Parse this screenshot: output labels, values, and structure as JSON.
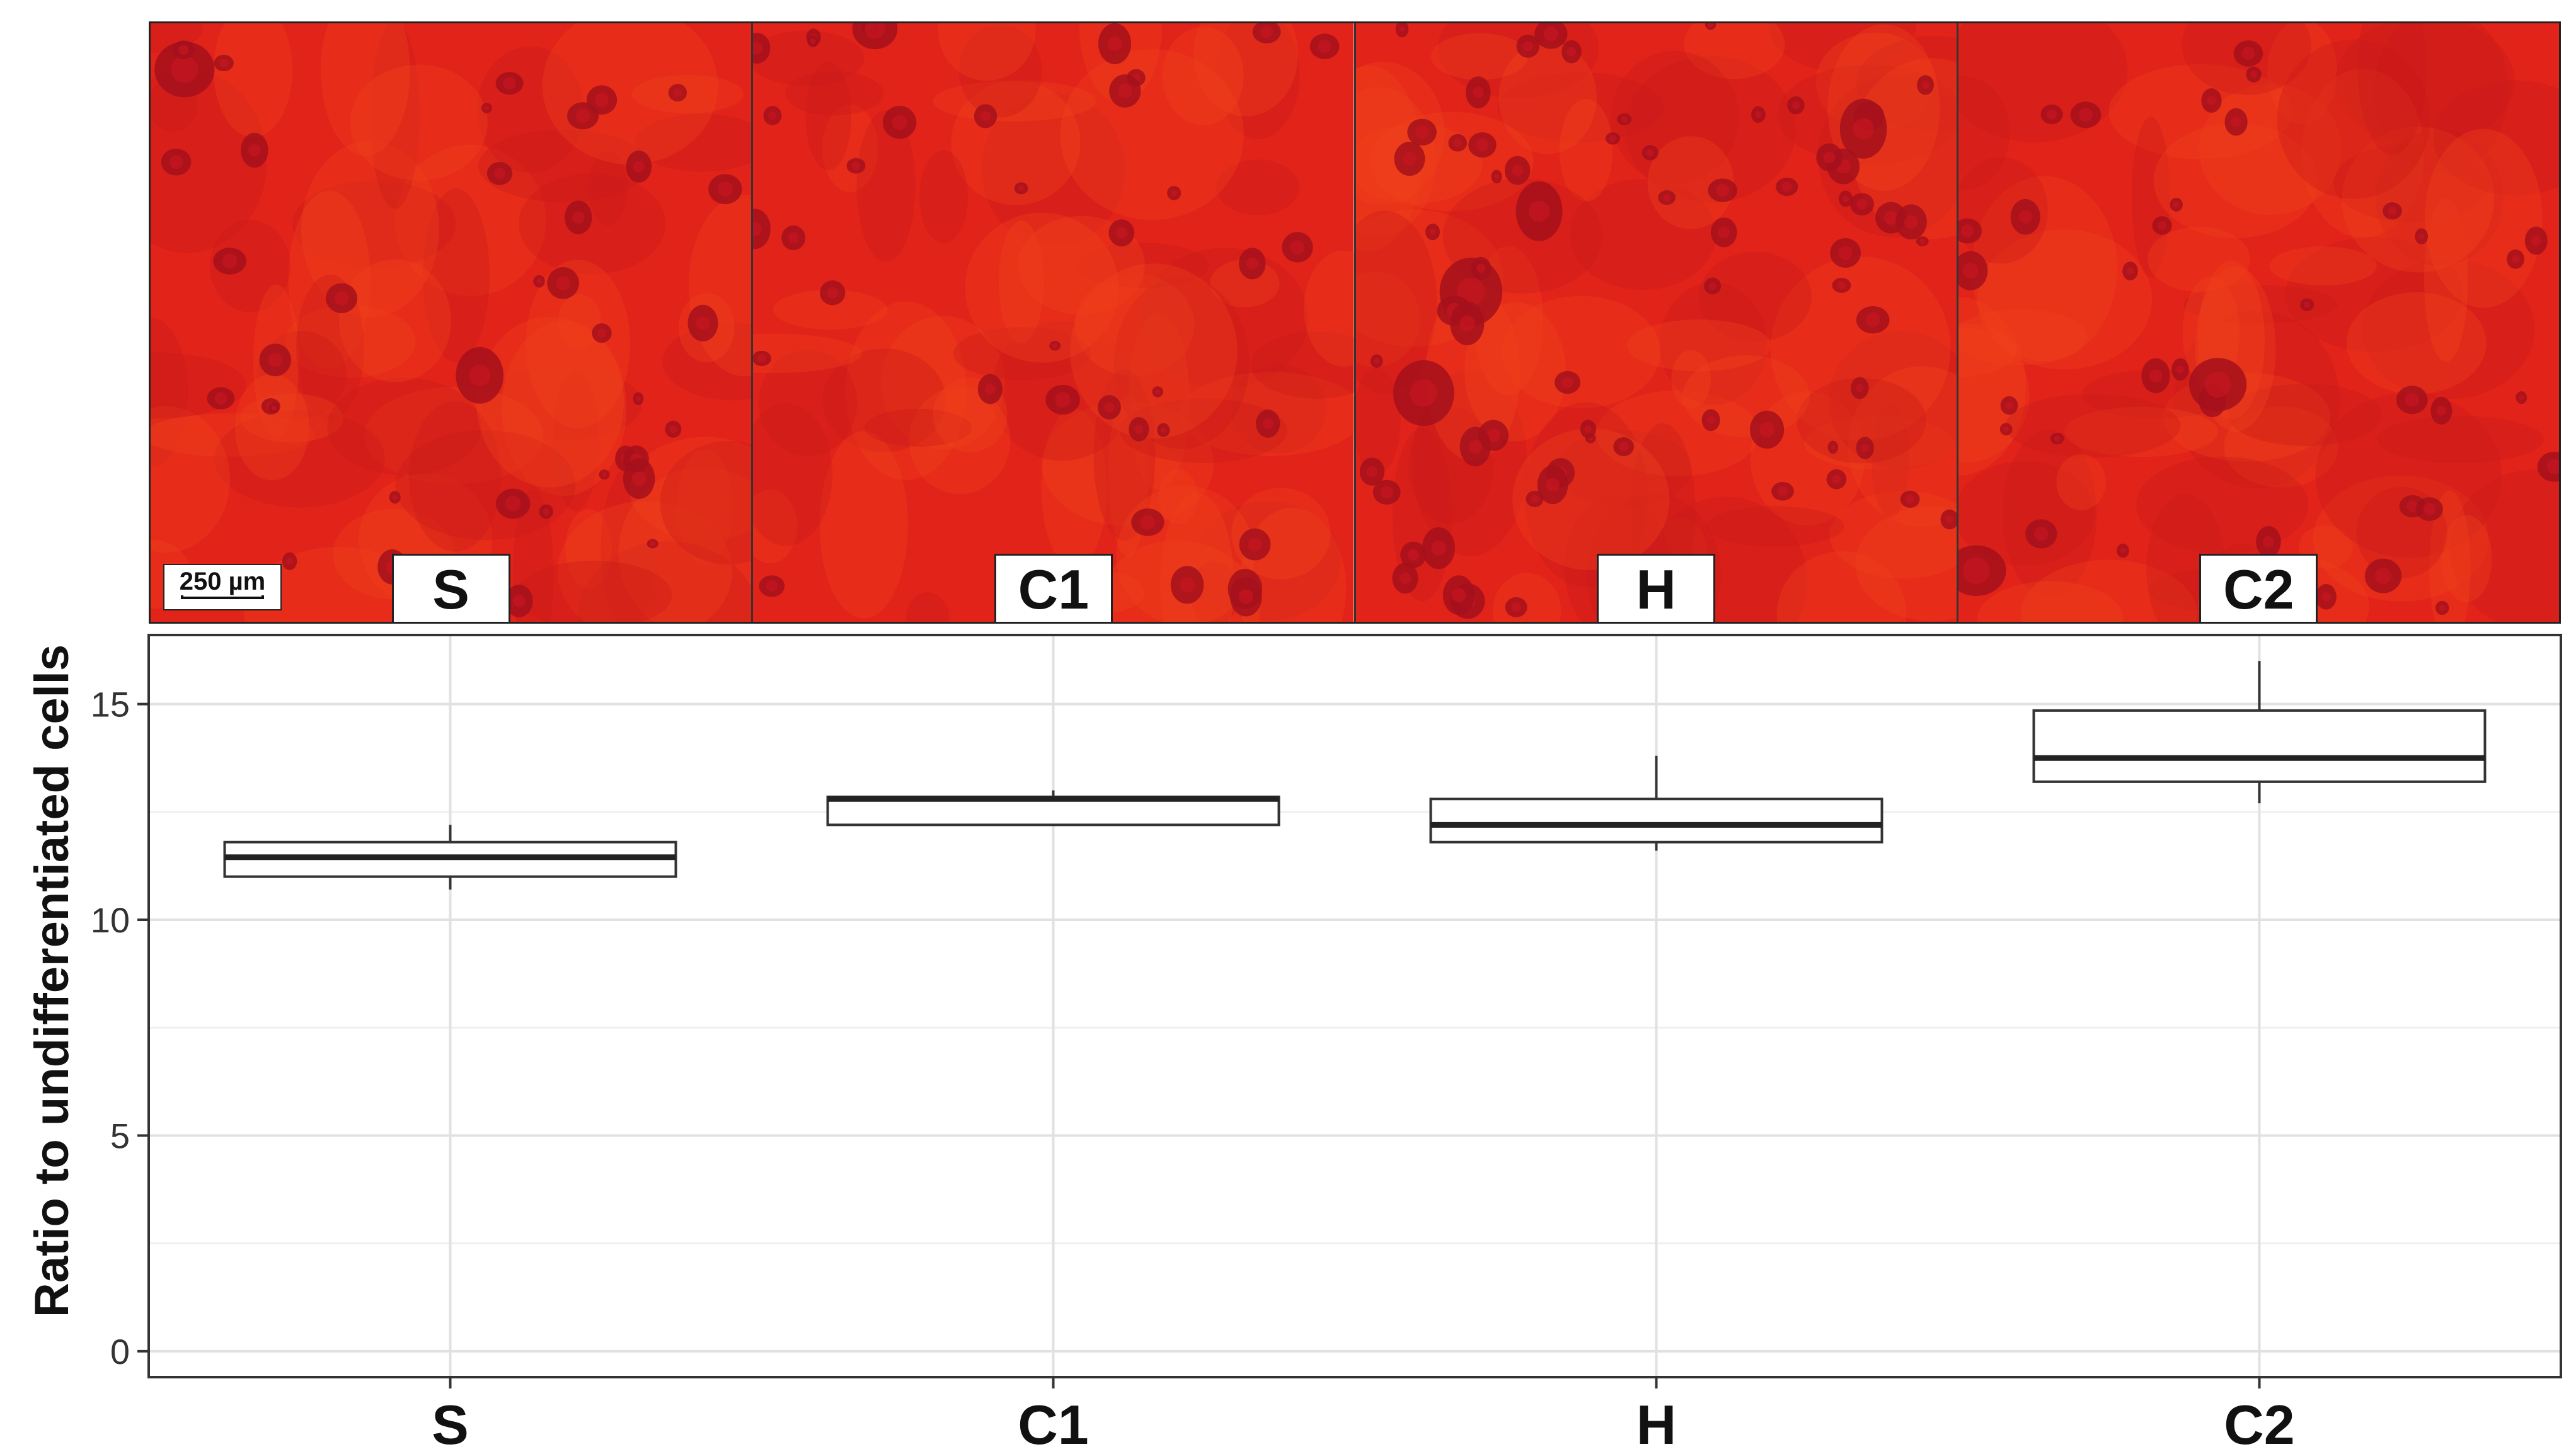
{
  "micrographs": {
    "panels": [
      {
        "label": "S"
      },
      {
        "label": "C1"
      },
      {
        "label": "H"
      },
      {
        "label": "C2"
      }
    ],
    "scale_bar": "250 µm",
    "colors": {
      "stain": "#e2231a",
      "dark_stain": "#a5101c",
      "light_stain": "#f0421c"
    }
  },
  "chart_data": {
    "type": "box",
    "title": "",
    "xlabel": "",
    "ylabel": "Ratio to undifferentiated  cells",
    "ylim": [
      -0.6,
      16.6
    ],
    "yticks": [
      0,
      5,
      10,
      15
    ],
    "grid": true,
    "categories": [
      "S",
      "C1",
      "H",
      "C2"
    ],
    "boxes": [
      {
        "category": "S",
        "whisker_low": 10.7,
        "q1": 11.0,
        "median": 11.45,
        "q3": 11.8,
        "whisker_high": 12.2
      },
      {
        "category": "C1",
        "whisker_low": 12.2,
        "q1": 12.2,
        "median": 12.8,
        "q3": 12.85,
        "whisker_high": 13.0
      },
      {
        "category": "H",
        "whisker_low": 11.6,
        "q1": 11.8,
        "median": 12.2,
        "q3": 12.8,
        "whisker_high": 13.8
      },
      {
        "category": "C2",
        "whisker_low": 12.7,
        "q1": 13.2,
        "median": 13.75,
        "q3": 14.85,
        "whisker_high": 16.0
      }
    ]
  }
}
